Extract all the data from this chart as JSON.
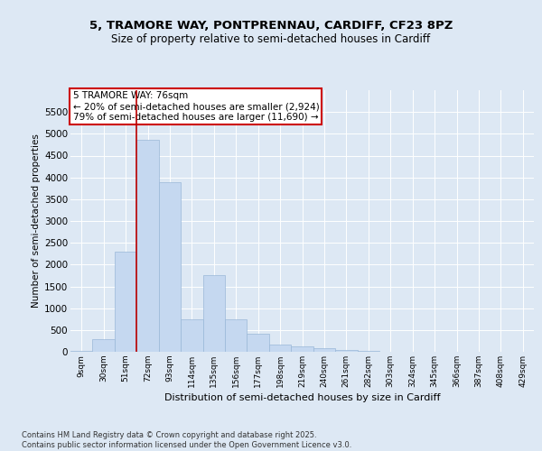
{
  "title1": "5, TRAMORE WAY, PONTPRENNAU, CARDIFF, CF23 8PZ",
  "title2": "Size of property relative to semi-detached houses in Cardiff",
  "xlabel": "Distribution of semi-detached houses by size in Cardiff",
  "ylabel": "Number of semi-detached properties",
  "categories": [
    "9sqm",
    "30sqm",
    "51sqm",
    "72sqm",
    "93sqm",
    "114sqm",
    "135sqm",
    "156sqm",
    "177sqm",
    "198sqm",
    "219sqm",
    "240sqm",
    "261sqm",
    "282sqm",
    "303sqm",
    "324sqm",
    "345sqm",
    "366sqm",
    "387sqm",
    "408sqm",
    "429sqm"
  ],
  "values": [
    20,
    290,
    2300,
    4870,
    3900,
    750,
    1750,
    750,
    420,
    175,
    130,
    80,
    50,
    28,
    10,
    8,
    4,
    3,
    2,
    1,
    0
  ],
  "bar_color": "#c5d8f0",
  "bar_edgecolor": "#9ab8d8",
  "vline_color": "#bb0000",
  "vline_index": 3,
  "annotation_text": "5 TRAMORE WAY: 76sqm\n← 20% of semi-detached houses are smaller (2,924)\n79% of semi-detached houses are larger (11,690) →",
  "annotation_box_facecolor": "white",
  "annotation_box_edgecolor": "#cc0000",
  "ylim": [
    0,
    6000
  ],
  "ytick_max": 5500,
  "ytick_step": 500,
  "bg_color": "#dde8f4",
  "grid_color": "white",
  "footer_text": "Contains HM Land Registry data © Crown copyright and database right 2025.\nContains public sector information licensed under the Open Government Licence v3.0."
}
